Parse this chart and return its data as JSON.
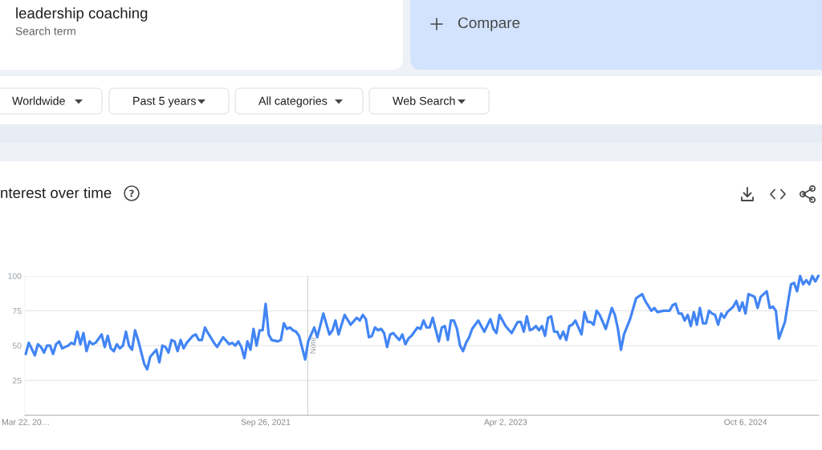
{
  "chart_data": {
    "type": "line",
    "title": "nterest over time",
    "annotations": [
      "leadership coaching",
      "Search term",
      "Compare",
      "Worldwide",
      "Past 5 years",
      "All categories",
      "Web Search"
    ],
    "x": [
      "2020-03-22",
      "2020-03-29",
      "2020-04-12",
      "2020-04-19",
      "2020-04-26",
      "2020-05-03",
      "2020-05-10",
      "2020-05-17",
      "2020-05-24",
      "2020-05-31",
      "2020-06-07",
      "2020-06-14",
      "2020-06-21",
      "2020-06-28",
      "2020-07-05",
      "2020-07-12",
      "2020-07-19",
      "2020-07-26",
      "2020-08-02",
      "2020-08-09",
      "2020-08-16",
      "2020-08-23",
      "2020-08-30",
      "2020-09-13",
      "2020-09-20",
      "2020-09-27",
      "2020-10-04",
      "2020-10-11",
      "2020-10-18",
      "2020-10-25",
      "2020-11-01",
      "2020-11-08",
      "2020-11-15",
      "2020-11-22",
      "2020-11-29",
      "2020-12-06",
      "2020-12-20",
      "2020-12-27",
      "2021-01-03",
      "2021-01-17",
      "2021-01-24",
      "2021-01-31",
      "2021-02-07",
      "2021-02-14",
      "2021-02-21",
      "2021-02-28",
      "2021-03-07",
      "2021-03-14",
      "2021-03-21",
      "2021-03-28",
      "2021-04-11",
      "2021-04-18",
      "2021-04-25",
      "2021-05-02",
      "2021-05-09",
      "2021-05-16",
      "2021-05-30",
      "2021-06-06",
      "2021-06-20",
      "2021-07-04",
      "2021-07-11",
      "2021-07-18",
      "2021-07-25",
      "2021-08-01",
      "2021-08-08",
      "2021-08-15",
      "2021-08-22",
      "2021-08-29",
      "2021-09-05",
      "2021-09-12",
      "2021-09-19",
      "2021-09-26",
      "2021-10-03",
      "2021-10-10",
      "2021-10-24",
      "2021-10-31",
      "2021-11-07",
      "2021-11-14",
      "2021-11-21",
      "2021-11-28",
      "2021-12-05",
      "2021-12-12",
      "2021-12-26",
      "2022-01-02",
      "2022-01-16",
      "2022-01-23",
      "2022-02-06",
      "2022-02-20",
      "2022-02-27",
      "2022-03-06",
      "2022-03-13",
      "2022-03-27",
      "2022-04-10",
      "2022-04-24",
      "2022-05-01",
      "2022-05-08",
      "2022-05-15",
      "2022-05-22",
      "2022-05-29",
      "2022-06-05",
      "2022-06-12",
      "2022-06-19",
      "2022-06-26",
      "2022-07-03",
      "2022-07-10",
      "2022-07-17",
      "2022-07-31",
      "2022-08-07",
      "2022-08-14",
      "2022-08-21",
      "2022-08-28",
      "2022-09-11",
      "2022-09-18",
      "2022-09-25",
      "2022-10-02",
      "2022-10-09",
      "2022-10-16",
      "2022-10-30",
      "2022-11-06",
      "2022-11-13",
      "2022-11-20",
      "2022-11-27",
      "2022-12-04",
      "2022-12-11",
      "2022-12-18",
      "2022-12-25",
      "2023-01-01",
      "2023-01-08",
      "2023-01-15",
      "2023-01-29",
      "2023-02-12",
      "2023-02-26",
      "2023-03-05",
      "2023-03-12",
      "2023-03-19",
      "2023-04-02",
      "2023-04-16",
      "2023-04-30",
      "2023-05-07",
      "2023-05-14",
      "2023-05-21",
      "2023-05-28",
      "2023-06-04",
      "2023-06-11",
      "2023-06-18",
      "2023-06-25",
      "2023-07-02",
      "2023-07-09",
      "2023-07-16",
      "2023-07-23",
      "2023-07-30",
      "2023-08-06",
      "2023-08-13",
      "2023-08-20",
      "2023-08-27",
      "2023-09-03",
      "2023-09-10",
      "2023-09-24",
      "2023-10-01",
      "2023-10-08",
      "2023-10-15",
      "2023-10-22",
      "2023-10-29",
      "2023-11-05",
      "2023-11-19",
      "2023-12-03",
      "2023-12-10",
      "2023-12-17",
      "2023-12-24",
      "2023-12-31",
      "2024-01-14",
      "2024-01-28",
      "2024-02-11",
      "2024-02-18",
      "2024-03-03",
      "2024-03-10",
      "2024-03-17",
      "2024-03-31",
      "2024-04-14",
      "2024-04-21",
      "2024-04-28",
      "2024-05-05",
      "2024-05-12",
      "2024-05-19",
      "2024-05-26",
      "2024-06-02",
      "2024-06-09",
      "2024-06-16",
      "2024-06-23",
      "2024-06-30",
      "2024-07-07",
      "2024-07-14",
      "2024-07-21",
      "2024-07-28",
      "2024-08-04",
      "2024-08-11",
      "2024-08-18",
      "2024-08-25",
      "2024-09-08",
      "2024-09-15",
      "2024-09-22",
      "2024-09-29",
      "2024-10-06",
      "2024-10-13",
      "2024-10-27",
      "2024-11-03",
      "2024-11-10",
      "2024-11-24",
      "2024-12-01",
      "2024-12-08",
      "2024-12-15",
      "2024-12-22",
      "2025-01-05",
      "2025-01-12",
      "2025-01-19",
      "2025-01-26",
      "2025-02-02",
      "2025-02-09",
      "2025-02-16",
      "2025-02-23",
      "2025-03-02",
      "2025-03-09",
      "2025-03-16",
      "2025-03-23"
    ],
    "values": [
      44,
      52,
      43,
      51,
      49,
      45,
      50,
      50,
      44,
      51,
      53,
      48,
      49,
      50,
      52,
      51,
      60,
      51,
      59,
      46,
      53,
      51,
      52,
      58,
      49,
      57,
      48,
      46,
      51,
      48,
      50,
      60,
      50,
      47,
      61,
      54,
      37,
      33,
      42,
      47,
      38,
      50,
      49,
      45,
      54,
      53,
      46,
      54,
      48,
      52,
      57,
      58,
      54,
      54,
      63,
      59,
      52,
      49,
      56,
      51,
      52,
      50,
      53,
      49,
      41,
      53,
      47,
      62,
      50,
      61,
      61,
      80,
      58,
      54,
      53,
      54,
      66,
      62,
      63,
      61,
      60,
      57,
      40,
      53,
      63,
      56,
      73,
      58,
      61,
      68,
      58,
      72,
      65,
      70,
      68,
      72,
      69,
      56,
      57,
      63,
      61,
      62,
      59,
      49,
      58,
      59,
      54,
      58,
      51,
      55,
      57,
      63,
      62,
      68,
      63,
      63,
      70,
      53,
      63,
      64,
      54,
      68,
      68,
      62,
      50,
      46,
      52,
      56,
      62,
      68,
      60,
      69,
      62,
      59,
      72,
      64,
      59,
      67,
      67,
      60,
      71,
      61,
      62,
      64,
      61,
      64,
      57,
      70,
      71,
      60,
      60,
      55,
      60,
      54,
      64,
      65,
      68,
      58,
      74,
      67,
      67,
      65,
      75,
      72,
      62,
      77,
      72,
      62,
      47,
      58,
      69,
      84,
      87,
      82,
      75,
      77,
      74,
      75,
      75,
      79,
      80,
      73,
      73,
      68,
      72,
      64,
      74,
      65,
      77,
      66,
      66,
      75,
      73,
      72,
      65,
      73,
      70,
      74,
      78,
      82,
      75,
      81,
      73,
      87,
      85,
      77,
      85,
      89,
      77,
      78,
      75,
      55,
      67,
      81,
      94,
      95,
      89,
      100,
      94,
      97,
      94,
      100,
      96,
      100
    ],
    "color": "#4285f4",
    "xlim": [
      "2020-03-20",
      "2025-03-24"
    ],
    "ylim": [
      0,
      100
    ],
    "xticks": [
      {
        "value": "2020-03-22",
        "label": "Mar 22, 20…"
      },
      {
        "value": "2021-09-26",
        "label": "Sep 26, 2021"
      },
      {
        "value": "2023-04-02",
        "label": "Apr 2, 2023"
      },
      {
        "value": "2024-10-06",
        "label": "Oct 6, 2024"
      }
    ],
    "yticks": [
      100,
      75,
      50,
      25
    ],
    "grid": "y",
    "ref_lines": [
      {
        "axis": "x",
        "value": "2022-01-01",
        "label": "Note",
        "color": "#cccccc"
      }
    ]
  }
}
